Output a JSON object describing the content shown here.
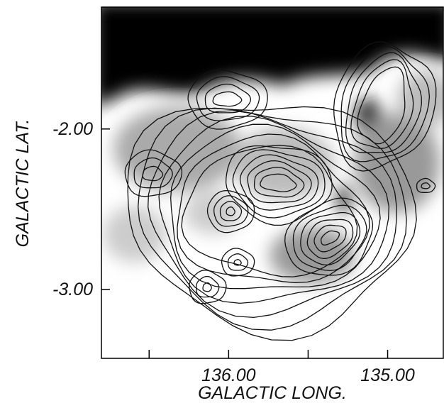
{
  "chart_data": {
    "type": "contour-map",
    "xlabel": "GALACTIC LONG.",
    "ylabel": "GALACTIC LAT.",
    "xlim": [
      136.8,
      134.65
    ],
    "ylim": [
      -3.43,
      -1.24
    ],
    "xticks": [
      {
        "value": 136,
        "label": "136.00"
      },
      {
        "value": 135,
        "label": "135.00"
      }
    ],
    "xminor_ticks": [
      136.5,
      135.5
    ],
    "yticks": [
      {
        "value": -2,
        "label": "-2.00"
      },
      {
        "value": -3,
        "label": "-3.00"
      }
    ]
  }
}
